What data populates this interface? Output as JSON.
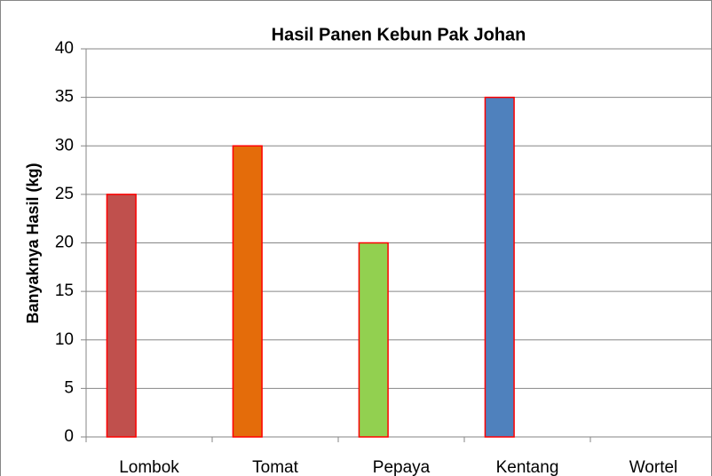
{
  "chart_data": {
    "type": "bar",
    "title": "Hasil Panen Kebun Pak Johan",
    "ylabel": "Banyaknya Hasil (kg)",
    "categories": [
      "Lombok",
      "Tomat",
      "Pepaya",
      "Kentang",
      "Wortel"
    ],
    "values": [
      25,
      30,
      20,
      35,
      null
    ],
    "colors": [
      "#c0504d",
      "#e46c0a",
      "#92d050",
      "#4f81bd",
      "#4f81bd"
    ],
    "edgecolor": "#ff0000",
    "ylim": [
      0,
      40
    ],
    "yticks": [
      0,
      5,
      10,
      15,
      20,
      25,
      30,
      35,
      40
    ],
    "grid": true
  }
}
